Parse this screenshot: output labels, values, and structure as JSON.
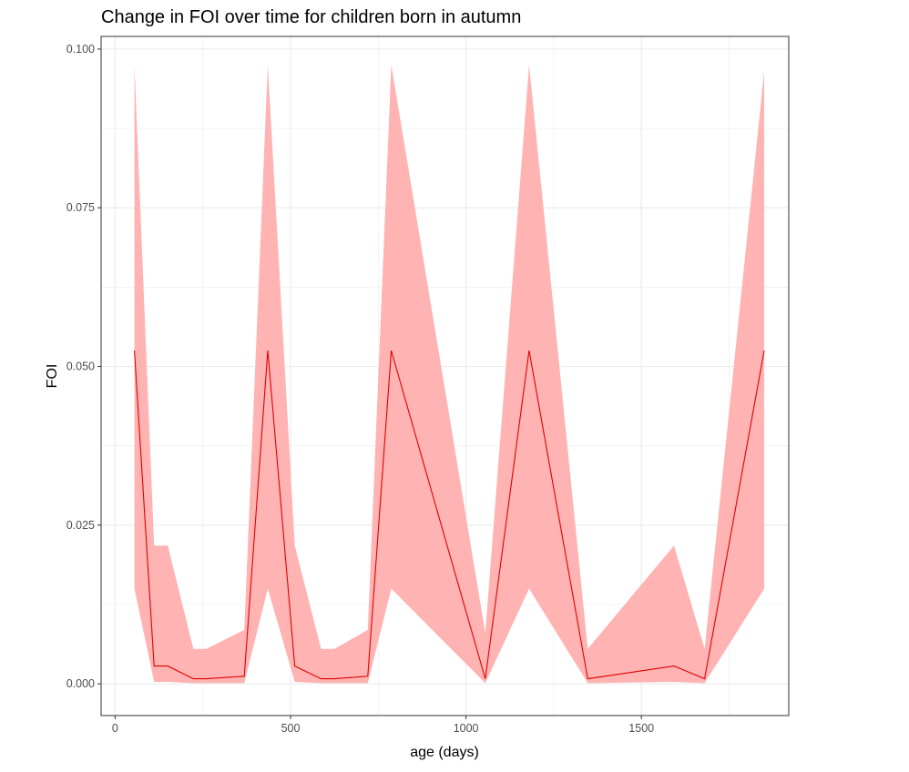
{
  "chart_data": {
    "type": "line",
    "title": "Change in FOI over time for children born in autumn",
    "xlabel": "age (days)",
    "ylabel": "FOI",
    "xlim": [
      -40,
      1920
    ],
    "ylim": [
      -0.005,
      0.102
    ],
    "x_ticks": [
      0,
      500,
      1000,
      1500
    ],
    "y_ticks": [
      0.0,
      0.025,
      0.05,
      0.075,
      0.1
    ],
    "x_tick_labels": [
      "0",
      "500",
      "1000",
      "1500"
    ],
    "y_tick_labels": [
      "0.000",
      "0.025",
      "0.050",
      "0.075",
      "0.100"
    ],
    "grid": true,
    "legend": "none",
    "series": [
      {
        "x": [
          55,
          111,
          150,
          223,
          260,
          368,
          435,
          512,
          587,
          625,
          720,
          787,
          1055,
          1180,
          1347,
          1593,
          1680,
          1850
        ],
        "y": [
          0.0525,
          0.0028,
          0.0028,
          0.0008,
          0.0008,
          0.0012,
          0.0525,
          0.0028,
          0.0008,
          0.0008,
          0.0012,
          0.0525,
          0.0008,
          0.0525,
          0.0008,
          0.0028,
          0.0008,
          0.0525
        ],
        "lower": [
          0.015,
          0.0003,
          0.0003,
          0.0001,
          0.0001,
          0.0001,
          0.015,
          0.0003,
          0.0001,
          0.0001,
          0.0001,
          0.015,
          0.0001,
          0.015,
          0.0001,
          0.0003,
          0.0001,
          0.015
        ],
        "upper": [
          0.0975,
          0.0218,
          0.0218,
          0.0055,
          0.0055,
          0.0085,
          0.0975,
          0.0218,
          0.0055,
          0.0055,
          0.0085,
          0.0975,
          0.008,
          0.0975,
          0.0055,
          0.0218,
          0.0055,
          0.0965
        ]
      }
    ],
    "colors": {
      "line": "#e00000",
      "ribbon": "#ffb3b3",
      "grid": "#ebebeb",
      "panel_border": "#333333"
    }
  }
}
